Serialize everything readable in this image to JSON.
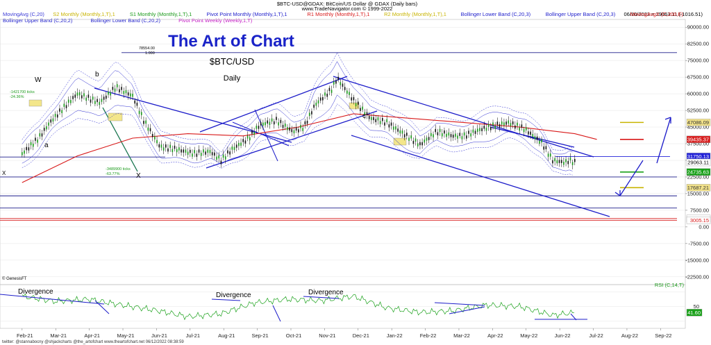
{
  "header": {
    "title_line": "$BTC-USD@GDAX: BitCoin/US Dollar @ GDAX  (Daily bars)",
    "site_line": "www.TradeNavigator.com © 1999-2022",
    "date_value": "06/10/2022 = 29063.11 (-1016.51)",
    "legend_row1": [
      {
        "label": "MovingAvg (C,20)",
        "color": "#3a3ad6"
      },
      {
        "label": "S2 Monthly (Monthly,1,T),1",
        "color": "#c8b400"
      },
      {
        "label": "S1 Monthly (Monthly,1,T),1",
        "color": "#1a9a1a"
      },
      {
        "label": "Pivot Point Monthly (Monthly,1,T),1",
        "color": "#2222cc"
      },
      {
        "label": "R1 Monthly (Monthly,1,T),1",
        "color": "#d81818"
      },
      {
        "label": "R2 Monthly (Monthly,1,T),1",
        "color": "#c8b400"
      },
      {
        "label": "Bollinger Lower Band (C,20,3)",
        "color": "#2222cc"
      },
      {
        "label": "Bollinger Upper Band (C,20,3)",
        "color": "#2222cc"
      },
      {
        "label": "MovingAvgX (C,200,E)",
        "color": "#d81818"
      }
    ],
    "legend_row2": [
      {
        "label": "Bollinger Upper Band (C,20,2)",
        "color": "#2222cc"
      },
      {
        "label": "Bollinger Lower Band (C,20,2)",
        "color": "#2222cc"
      },
      {
        "label": "Pivot Point Weekly (Weekly,1,T)",
        "color": "#c418c4"
      }
    ]
  },
  "annotations": {
    "brand": "The Art of Chart",
    "symbol": "$BTC/USD",
    "timeframe": "Daily",
    "top_marker": "78554.00",
    "top_marker_sub": "1.000",
    "ticks_up": "-1421700 ticks",
    "pct_up": "-24.36%",
    "ticks_down": "-3489900 ticks",
    "pct_down": "-63.77%",
    "wave_w": "W",
    "wave_b": "b",
    "wave_a": "a",
    "wave_x_left": "X",
    "wave_x": "X",
    "wave_c": "c",
    "divergence_1": "Divergence",
    "divergence_2": "Divergence",
    "divergence_3": "Divergence",
    "rsi_label": "RSI (C,14,T)",
    "copyright": "© GenesisFT",
    "footer": "twitter: @stannabocny @shjackcharts @the_artofchart    www.theartofchart.net    06/12/2022 08:38:59"
  },
  "price_flags": [
    {
      "text": "47086.09",
      "bg": "#f2e28a",
      "fg": "#333333",
      "y": 47086
    },
    {
      "text": "39435.37",
      "bg": "#d82020",
      "fg": "#ffffff",
      "y": 39435
    },
    {
      "text": "31750.13",
      "bg": "#2020d8",
      "fg": "#ffffff",
      "y": 31750
    },
    {
      "text": "29063.11",
      "bg": "#ffffff",
      "fg": "#000000",
      "y": 29063
    },
    {
      "text": "24735.63",
      "bg": "#18a018",
      "fg": "#ffffff",
      "y": 24735
    },
    {
      "text": "17687.21",
      "bg": "#f2e28a",
      "fg": "#333333",
      "y": 17687
    },
    {
      "text": "3777.42",
      "bg": "#ffffff",
      "fg": "#d81818",
      "y": 3777
    },
    {
      "text": "3005.15",
      "bg": "#ffffff",
      "fg": "#d81818",
      "y": 3005
    }
  ],
  "rsi_flag": {
    "text": "41.60",
    "bg": "#18a018",
    "fg": "#ffffff",
    "value": 41.6
  },
  "chart_data": {
    "type": "line",
    "symbol": "$BTC-USD@GDAX",
    "y_ticks": [
      90000,
      82500,
      75000,
      67500,
      60000,
      52500,
      45000,
      37500,
      30000,
      22500,
      15000,
      7500,
      0,
      -7500,
      -15000,
      -22500
    ],
    "ylim": [
      -26000,
      93500
    ],
    "x_ticks": [
      "Feb-21",
      "Mar-21",
      "Apr-21",
      "May-21",
      "Jun-21",
      "Jul-21",
      "Aug-21",
      "Sep-21",
      "Oct-21",
      "Nov-21",
      "Dec-21",
      "Jan-22",
      "Feb-22",
      "Mar-22",
      "Apr-22",
      "May-22",
      "Jun-22",
      "Jul-22",
      "Aug-22",
      "Sep-22"
    ],
    "x_range_days": [
      -20,
      600
    ],
    "series": [
      {
        "kind": "price",
        "x": [
          0,
          15,
          25,
          40,
          50,
          60,
          70,
          85,
          100,
          110,
          125,
          140,
          155,
          170,
          180,
          190,
          205,
          215,
          230,
          245,
          255,
          265,
          280,
          285,
          300,
          315,
          330,
          345,
          360,
          375,
          390,
          400,
          415,
          430,
          440,
          455,
          465,
          470,
          480,
          491,
          495,
          500
        ],
        "values": [
          33000,
          40000,
          47000,
          55000,
          60000,
          58000,
          56000,
          63000,
          59000,
          48000,
          36000,
          35000,
          33000,
          34000,
          30000,
          35000,
          40000,
          46000,
          48000,
          43000,
          45000,
          55000,
          62000,
          67000,
          57000,
          49000,
          47000,
          42000,
          37000,
          43000,
          41000,
          41000,
          44000,
          46000,
          47000,
          44000,
          40000,
          38000,
          30000,
          29000,
          30000,
          29063
        ]
      },
      {
        "kind": "ma200",
        "x": [
          0,
          50,
          100,
          150,
          200,
          250,
          300,
          350,
          400,
          450,
          500,
          520
        ],
        "values": [
          20000,
          32000,
          40000,
          42000,
          41000,
          45000,
          51000,
          49000,
          47000,
          45000,
          42000,
          39435
        ]
      },
      {
        "kind": "rsi",
        "x": [
          0,
          30,
          60,
          90,
          120,
          150,
          180,
          210,
          240,
          270,
          300,
          330,
          360,
          390,
          420,
          450,
          480,
          500
        ],
        "values": [
          64,
          57,
          60,
          52,
          45,
          36,
          40,
          55,
          60,
          58,
          64,
          48,
          42,
          44,
          52,
          50,
          38,
          41.6
        ]
      }
    ],
    "horizontal_levels": [
      78554,
      47086,
      39435,
      31750,
      24735,
      22500,
      17687,
      14000,
      8500,
      3777,
      3005
    ]
  }
}
